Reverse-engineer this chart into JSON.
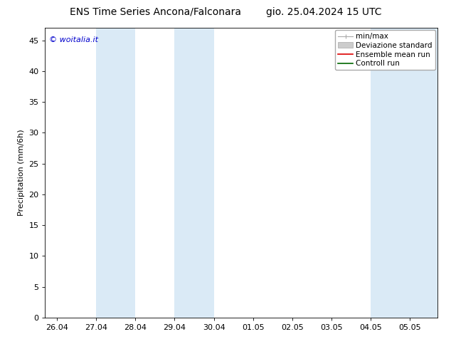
{
  "title_left": "ENS Time Series Ancona/Falconara",
  "title_right": "gio. 25.04.2024 15 UTC",
  "ylabel": "Precipitation (mm/6h)",
  "watermark": "© woitalia.it",
  "watermark_color": "#0000cc",
  "background_color": "#ffffff",
  "plot_bg_color": "#ffffff",
  "ylim": [
    0,
    47
  ],
  "yticks": [
    0,
    5,
    10,
    15,
    20,
    25,
    30,
    35,
    40,
    45
  ],
  "x_labels": [
    "26.04",
    "27.04",
    "28.04",
    "29.04",
    "30.04",
    "01.05",
    "02.05",
    "03.05",
    "04.05",
    "05.05"
  ],
  "x_values": [
    0,
    1,
    2,
    3,
    4,
    5,
    6,
    7,
    8,
    9
  ],
  "xlim": [
    -0.3,
    9.7
  ],
  "shaded_bands": [
    {
      "x_start": 1.0,
      "x_end": 2.0,
      "color": "#daeaf6"
    },
    {
      "x_start": 3.0,
      "x_end": 4.0,
      "color": "#daeaf6"
    },
    {
      "x_start": 8.0,
      "x_end": 9.0,
      "color": "#daeaf6"
    },
    {
      "x_start": 9.0,
      "x_end": 9.7,
      "color": "#daeaf6"
    }
  ],
  "legend_labels": [
    "min/max",
    "Deviazione standard",
    "Ensemble mean run",
    "Controll run"
  ],
  "legend_colors_line": [
    "#999999",
    "#bbbbbb",
    "#ff0000",
    "#008000"
  ],
  "font_size_title": 10,
  "font_size_labels": 8,
  "font_size_tick": 8,
  "font_size_legend": 7.5,
  "font_size_watermark": 8,
  "tick_color": "#000000",
  "spine_color": "#000000",
  "title_font": "DejaVu Sans"
}
